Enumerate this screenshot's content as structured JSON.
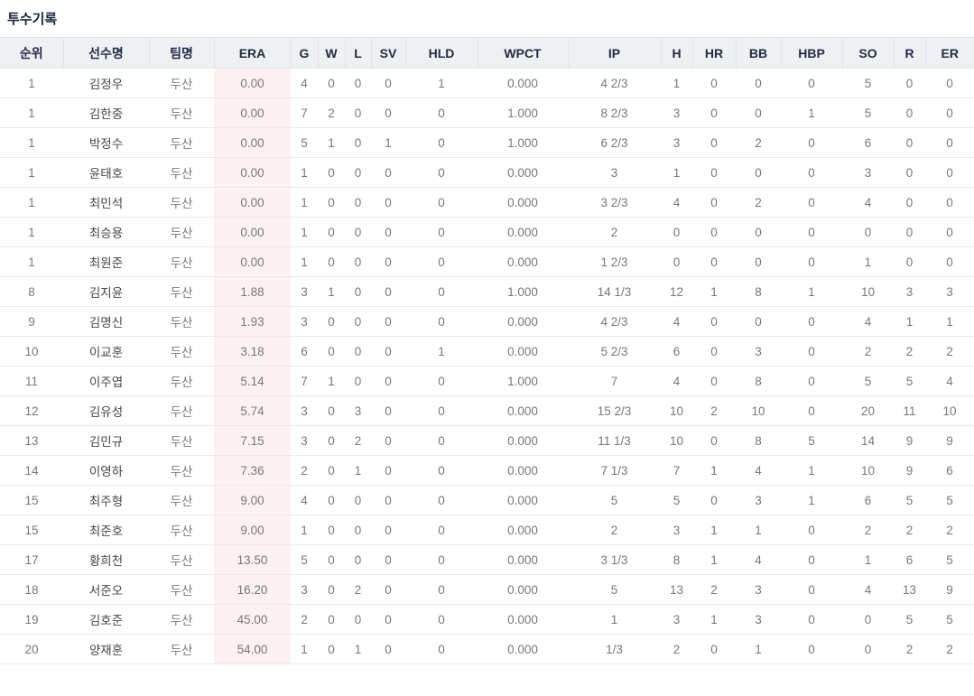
{
  "title": "투수기록",
  "colors": {
    "title_text": "#15233f",
    "header_bg": "#eef1f2",
    "header_text": "#202c47",
    "body_text": "#787878",
    "name_text": "#464646",
    "row_border": "#eaeaea",
    "era_column_bg": "#fdf1f1"
  },
  "table": {
    "columns": [
      {
        "key": "rank",
        "label": "순위"
      },
      {
        "key": "name",
        "label": "선수명"
      },
      {
        "key": "team",
        "label": "팀명"
      },
      {
        "key": "era",
        "label": "ERA"
      },
      {
        "key": "g",
        "label": "G"
      },
      {
        "key": "w",
        "label": "W"
      },
      {
        "key": "l",
        "label": "L"
      },
      {
        "key": "sv",
        "label": "SV"
      },
      {
        "key": "hld",
        "label": "HLD"
      },
      {
        "key": "wpct",
        "label": "WPCT"
      },
      {
        "key": "ip",
        "label": "IP"
      },
      {
        "key": "h",
        "label": "H"
      },
      {
        "key": "hr",
        "label": "HR"
      },
      {
        "key": "bb",
        "label": "BB"
      },
      {
        "key": "hbp",
        "label": "HBP"
      },
      {
        "key": "so",
        "label": "SO"
      },
      {
        "key": "r",
        "label": "R"
      },
      {
        "key": "er",
        "label": "ER"
      }
    ],
    "rows": [
      {
        "rank": "1",
        "name": "김정우",
        "team": "두산",
        "era": "0.00",
        "g": "4",
        "w": "0",
        "l": "0",
        "sv": "0",
        "hld": "1",
        "wpct": "0.000",
        "ip": "4 2/3",
        "h": "1",
        "hr": "0",
        "bb": "0",
        "hbp": "0",
        "so": "5",
        "r": "0",
        "er": "0"
      },
      {
        "rank": "1",
        "name": "김한중",
        "team": "두산",
        "era": "0.00",
        "g": "7",
        "w": "2",
        "l": "0",
        "sv": "0",
        "hld": "0",
        "wpct": "1.000",
        "ip": "8 2/3",
        "h": "3",
        "hr": "0",
        "bb": "0",
        "hbp": "1",
        "so": "5",
        "r": "0",
        "er": "0"
      },
      {
        "rank": "1",
        "name": "박정수",
        "team": "두산",
        "era": "0.00",
        "g": "5",
        "w": "1",
        "l": "0",
        "sv": "1",
        "hld": "0",
        "wpct": "1.000",
        "ip": "6 2/3",
        "h": "3",
        "hr": "0",
        "bb": "2",
        "hbp": "0",
        "so": "6",
        "r": "0",
        "er": "0"
      },
      {
        "rank": "1",
        "name": "윤태호",
        "team": "두산",
        "era": "0.00",
        "g": "1",
        "w": "0",
        "l": "0",
        "sv": "0",
        "hld": "0",
        "wpct": "0.000",
        "ip": "3",
        "h": "1",
        "hr": "0",
        "bb": "0",
        "hbp": "0",
        "so": "3",
        "r": "0",
        "er": "0"
      },
      {
        "rank": "1",
        "name": "최민석",
        "team": "두산",
        "era": "0.00",
        "g": "1",
        "w": "0",
        "l": "0",
        "sv": "0",
        "hld": "0",
        "wpct": "0.000",
        "ip": "3 2/3",
        "h": "4",
        "hr": "0",
        "bb": "2",
        "hbp": "0",
        "so": "4",
        "r": "0",
        "er": "0"
      },
      {
        "rank": "1",
        "name": "최승용",
        "team": "두산",
        "era": "0.00",
        "g": "1",
        "w": "0",
        "l": "0",
        "sv": "0",
        "hld": "0",
        "wpct": "0.000",
        "ip": "2",
        "h": "0",
        "hr": "0",
        "bb": "0",
        "hbp": "0",
        "so": "0",
        "r": "0",
        "er": "0"
      },
      {
        "rank": "1",
        "name": "최원준",
        "team": "두산",
        "era": "0.00",
        "g": "1",
        "w": "0",
        "l": "0",
        "sv": "0",
        "hld": "0",
        "wpct": "0.000",
        "ip": "1 2/3",
        "h": "0",
        "hr": "0",
        "bb": "0",
        "hbp": "0",
        "so": "1",
        "r": "0",
        "er": "0"
      },
      {
        "rank": "8",
        "name": "김지윤",
        "team": "두산",
        "era": "1.88",
        "g": "3",
        "w": "1",
        "l": "0",
        "sv": "0",
        "hld": "0",
        "wpct": "1.000",
        "ip": "14 1/3",
        "h": "12",
        "hr": "1",
        "bb": "8",
        "hbp": "1",
        "so": "10",
        "r": "3",
        "er": "3"
      },
      {
        "rank": "9",
        "name": "김명신",
        "team": "두산",
        "era": "1.93",
        "g": "3",
        "w": "0",
        "l": "0",
        "sv": "0",
        "hld": "0",
        "wpct": "0.000",
        "ip": "4 2/3",
        "h": "4",
        "hr": "0",
        "bb": "0",
        "hbp": "0",
        "so": "4",
        "r": "1",
        "er": "1"
      },
      {
        "rank": "10",
        "name": "이교훈",
        "team": "두산",
        "era": "3.18",
        "g": "6",
        "w": "0",
        "l": "0",
        "sv": "0",
        "hld": "1",
        "wpct": "0.000",
        "ip": "5 2/3",
        "h": "6",
        "hr": "0",
        "bb": "3",
        "hbp": "0",
        "so": "2",
        "r": "2",
        "er": "2"
      },
      {
        "rank": "11",
        "name": "이주엽",
        "team": "두산",
        "era": "5.14",
        "g": "7",
        "w": "1",
        "l": "0",
        "sv": "0",
        "hld": "0",
        "wpct": "1.000",
        "ip": "7",
        "h": "4",
        "hr": "0",
        "bb": "8",
        "hbp": "0",
        "so": "5",
        "r": "5",
        "er": "4"
      },
      {
        "rank": "12",
        "name": "김유성",
        "team": "두산",
        "era": "5.74",
        "g": "3",
        "w": "0",
        "l": "3",
        "sv": "0",
        "hld": "0",
        "wpct": "0.000",
        "ip": "15 2/3",
        "h": "10",
        "hr": "2",
        "bb": "10",
        "hbp": "0",
        "so": "20",
        "r": "11",
        "er": "10"
      },
      {
        "rank": "13",
        "name": "김민규",
        "team": "두산",
        "era": "7.15",
        "g": "3",
        "w": "0",
        "l": "2",
        "sv": "0",
        "hld": "0",
        "wpct": "0.000",
        "ip": "11 1/3",
        "h": "10",
        "hr": "0",
        "bb": "8",
        "hbp": "5",
        "so": "14",
        "r": "9",
        "er": "9"
      },
      {
        "rank": "14",
        "name": "이영하",
        "team": "두산",
        "era": "7.36",
        "g": "2",
        "w": "0",
        "l": "1",
        "sv": "0",
        "hld": "0",
        "wpct": "0.000",
        "ip": "7 1/3",
        "h": "7",
        "hr": "1",
        "bb": "4",
        "hbp": "1",
        "so": "10",
        "r": "9",
        "er": "6"
      },
      {
        "rank": "15",
        "name": "최주형",
        "team": "두산",
        "era": "9.00",
        "g": "4",
        "w": "0",
        "l": "0",
        "sv": "0",
        "hld": "0",
        "wpct": "0.000",
        "ip": "5",
        "h": "5",
        "hr": "0",
        "bb": "3",
        "hbp": "1",
        "so": "6",
        "r": "5",
        "er": "5"
      },
      {
        "rank": "15",
        "name": "최준호",
        "team": "두산",
        "era": "9.00",
        "g": "1",
        "w": "0",
        "l": "0",
        "sv": "0",
        "hld": "0",
        "wpct": "0.000",
        "ip": "2",
        "h": "3",
        "hr": "1",
        "bb": "1",
        "hbp": "0",
        "so": "2",
        "r": "2",
        "er": "2"
      },
      {
        "rank": "17",
        "name": "황희천",
        "team": "두산",
        "era": "13.50",
        "g": "5",
        "w": "0",
        "l": "0",
        "sv": "0",
        "hld": "0",
        "wpct": "0.000",
        "ip": "3 1/3",
        "h": "8",
        "hr": "1",
        "bb": "4",
        "hbp": "0",
        "so": "1",
        "r": "6",
        "er": "5"
      },
      {
        "rank": "18",
        "name": "서준오",
        "team": "두산",
        "era": "16.20",
        "g": "3",
        "w": "0",
        "l": "2",
        "sv": "0",
        "hld": "0",
        "wpct": "0.000",
        "ip": "5",
        "h": "13",
        "hr": "2",
        "bb": "3",
        "hbp": "0",
        "so": "4",
        "r": "13",
        "er": "9"
      },
      {
        "rank": "19",
        "name": "김호준",
        "team": "두산",
        "era": "45.00",
        "g": "2",
        "w": "0",
        "l": "0",
        "sv": "0",
        "hld": "0",
        "wpct": "0.000",
        "ip": "1",
        "h": "3",
        "hr": "1",
        "bb": "3",
        "hbp": "0",
        "so": "0",
        "r": "5",
        "er": "5"
      },
      {
        "rank": "20",
        "name": "양재훈",
        "team": "두산",
        "era": "54.00",
        "g": "1",
        "w": "0",
        "l": "1",
        "sv": "0",
        "hld": "0",
        "wpct": "0.000",
        "ip": "1/3",
        "h": "2",
        "hr": "0",
        "bb": "1",
        "hbp": "0",
        "so": "0",
        "r": "2",
        "er": "2"
      }
    ]
  }
}
